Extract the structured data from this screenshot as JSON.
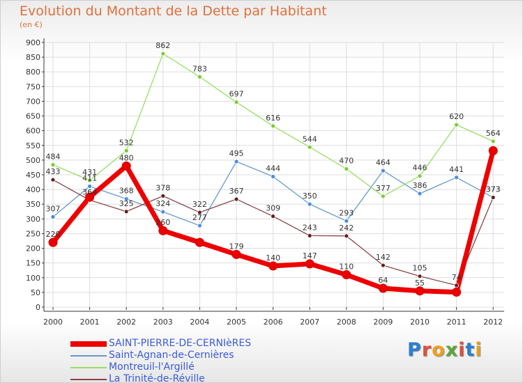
{
  "page": {
    "title": "Evolution du Montant de la Dette par Habitant",
    "subtitle": "(en €)",
    "brand": "Proxiti",
    "brand_colors": [
      "#2a7fd0",
      "#e0503a",
      "#f0a020",
      "#5aa83a",
      "#e0503a",
      "#2a7fd0",
      "#e0a020"
    ]
  },
  "chart_data": {
    "type": "line",
    "title": "Evolution du Montant de la Dette par Habitant",
    "subtitle": "(en €)",
    "xlabel": "",
    "ylabel": "",
    "x": [
      "2000",
      "2001",
      "2002",
      "2003",
      "2004",
      "2005",
      "2006",
      "2007",
      "2008",
      "2009",
      "2010",
      "2011",
      "2012"
    ],
    "ylim": [
      0,
      900
    ],
    "yticks": [
      0,
      50,
      100,
      150,
      200,
      250,
      300,
      350,
      400,
      450,
      500,
      550,
      600,
      650,
      700,
      750,
      800,
      850,
      900
    ],
    "grid": true,
    "legend_position": "bottom-left",
    "series": [
      {
        "name": "SAINT-PIERRE-DE-CERNIèRES",
        "color": "#ee0000",
        "marker_color": "#ee0000",
        "emphasis": true,
        "values": [
          220,
          374,
          480,
          260,
          220,
          179,
          140,
          147,
          110,
          64,
          55,
          51,
          532
        ],
        "labels": [
          "220",
          "",
          "480",
          "260",
          "",
          "179",
          "140",
          "147",
          "110",
          "64",
          "55",
          "",
          ""
        ]
      },
      {
        "name": "Saint-Agnan-de-Cernières",
        "color": "#6699cc",
        "marker_color": "#4a8be0",
        "emphasis": false,
        "values": [
          307,
          411,
          368,
          324,
          277,
          495,
          444,
          350,
          293,
          464,
          386,
          441,
          373
        ],
        "labels": [
          "307",
          "411",
          "368",
          "324",
          "277",
          "495",
          "444",
          "350",
          "293",
          "464",
          "386",
          "441",
          "373"
        ]
      },
      {
        "name": "Montreuil-l'Argillé",
        "color": "#99dd66",
        "marker_color": "#77cc33",
        "emphasis": false,
        "values": [
          484,
          431,
          532,
          862,
          783,
          697,
          616,
          544,
          470,
          377,
          446,
          620,
          564
        ],
        "labels": [
          "484",
          "431",
          "532",
          "862",
          "783",
          "697",
          "616",
          "544",
          "470",
          "377",
          "446",
          "620",
          "564"
        ]
      },
      {
        "name": "La Trinité-de-Réville",
        "color": "#884444",
        "marker_color": "#661f1f",
        "emphasis": false,
        "values": [
          433,
          364,
          325,
          378,
          322,
          367,
          309,
          243,
          242,
          142,
          105,
          74,
          373
        ],
        "labels": [
          "433",
          "364",
          "325",
          "378",
          "322",
          "367",
          "309",
          "243",
          "242",
          "142",
          "105",
          "74",
          "373"
        ]
      }
    ]
  }
}
